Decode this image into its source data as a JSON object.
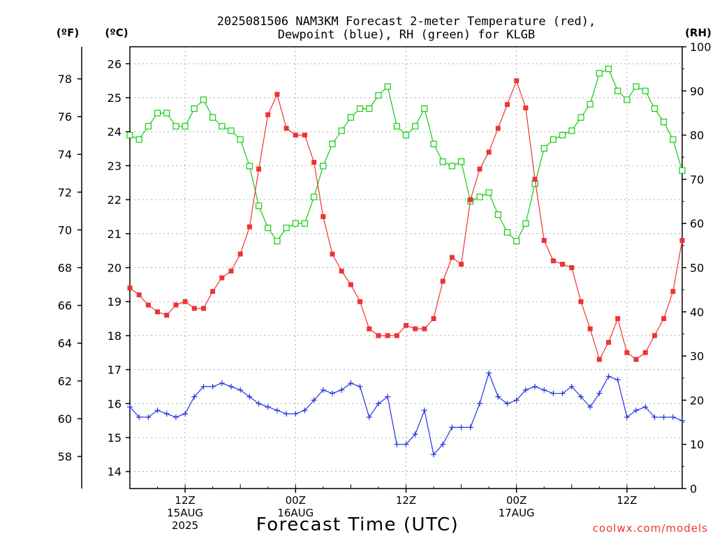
{
  "title_line1": "2025081506 NAM3KM Forecast 2-meter Temperature (red),",
  "title_line2": "Dewpoint (blue), RH (green) for KLGB",
  "xlabel": "Forecast Time (UTC)",
  "credit": "coolwx.com/models",
  "units": {
    "f": "(ºF)",
    "c": "(ºC)",
    "rh": "(RH)"
  },
  "colors": {
    "temp": "#ee3333",
    "dew": "#2233dd",
    "rh": "#11cc11"
  },
  "chart_data": {
    "type": "line",
    "x_unit": "forecast hour from 2025-08-15 06Z",
    "x": [
      0,
      1,
      2,
      3,
      4,
      5,
      6,
      7,
      8,
      9,
      10,
      11,
      12,
      13,
      14,
      15,
      16,
      17,
      18,
      19,
      20,
      21,
      22,
      23,
      24,
      25,
      26,
      27,
      28,
      29,
      30,
      31,
      32,
      33,
      34,
      35,
      36,
      37,
      38,
      39,
      40,
      41,
      42,
      43,
      44,
      45,
      46,
      47,
      48,
      49,
      50,
      51,
      52,
      53,
      54,
      55,
      56,
      57,
      58,
      59,
      60
    ],
    "xlim": [
      0,
      60
    ],
    "x_ticks": [
      {
        "h": 6,
        "l1": "12Z",
        "l2": "15AUG",
        "l3": "2025"
      },
      {
        "h": 18,
        "l1": "00Z",
        "l2": "16AUG",
        "l3": ""
      },
      {
        "h": 30,
        "l1": "12Z",
        "l2": "",
        "l3": ""
      },
      {
        "h": 42,
        "l1": "00Z",
        "l2": "17AUG",
        "l3": ""
      },
      {
        "h": 54,
        "l1": "12Z",
        "l2": "",
        "l3": ""
      }
    ],
    "y_c_lim": [
      13.5,
      26.5
    ],
    "y_c_ticks": [
      14,
      15,
      16,
      17,
      18,
      19,
      20,
      21,
      22,
      23,
      24,
      25,
      26
    ],
    "y_f_ticks": [
      58,
      60,
      62,
      64,
      66,
      68,
      70,
      72,
      74,
      76,
      78
    ],
    "y_rh_lim": [
      0,
      100
    ],
    "y_rh_ticks": [
      0,
      10,
      20,
      30,
      40,
      50,
      60,
      70,
      80,
      90,
      100
    ],
    "series": [
      {
        "name": "Temperature",
        "axis": "C",
        "values": [
          19.4,
          19.2,
          18.9,
          18.7,
          18.6,
          18.9,
          19.0,
          18.8,
          18.8,
          19.3,
          19.7,
          19.9,
          20.4,
          21.2,
          22.9,
          24.5,
          25.1,
          24.1,
          23.9,
          23.9,
          23.1,
          21.5,
          20.4,
          19.9,
          19.5,
          19.0,
          18.2,
          18.0,
          18.0,
          18.0,
          18.3,
          18.2,
          18.2,
          18.5,
          19.6,
          20.3,
          20.1,
          22.0,
          22.9,
          23.4,
          24.1,
          24.8,
          25.5,
          24.7,
          22.6,
          20.8,
          20.2,
          20.1,
          20.0,
          19.0,
          18.2,
          17.3,
          17.8,
          18.5,
          17.5,
          17.3,
          17.5,
          18.0,
          18.5,
          19.3,
          20.8
        ]
      },
      {
        "name": "Dewpoint",
        "axis": "C",
        "values": [
          15.9,
          15.6,
          15.6,
          15.8,
          15.7,
          15.6,
          15.7,
          16.2,
          16.5,
          16.5,
          16.6,
          16.5,
          16.4,
          16.2,
          16.0,
          15.9,
          15.8,
          15.7,
          15.7,
          15.8,
          16.1,
          16.4,
          16.3,
          16.4,
          16.6,
          16.5,
          15.6,
          16.0,
          16.2,
          14.8,
          14.8,
          15.1,
          15.8,
          14.5,
          14.8,
          15.3,
          15.3,
          15.3,
          16.0,
          16.9,
          16.2,
          16.0,
          16.1,
          16.4,
          16.5,
          16.4,
          16.3,
          16.3,
          16.5,
          16.2,
          15.9,
          16.3,
          16.8,
          16.7,
          15.6,
          15.8,
          15.9,
          15.6,
          15.6,
          15.6,
          15.5
        ]
      },
      {
        "name": "RH",
        "axis": "RH",
        "values": [
          80,
          79,
          82,
          85,
          85,
          82,
          82,
          86,
          88,
          84,
          82,
          81,
          79,
          73,
          64,
          59,
          56,
          59,
          60,
          60,
          66,
          73,
          78,
          81,
          84,
          86,
          86,
          89,
          91,
          82,
          80,
          82,
          86,
          78,
          74,
          73,
          74,
          65,
          66,
          67,
          62,
          58,
          56,
          60,
          69,
          77,
          79,
          80,
          81,
          84,
          87,
          94,
          95,
          90,
          88,
          91,
          90,
          86,
          83,
          79,
          72
        ]
      }
    ]
  }
}
